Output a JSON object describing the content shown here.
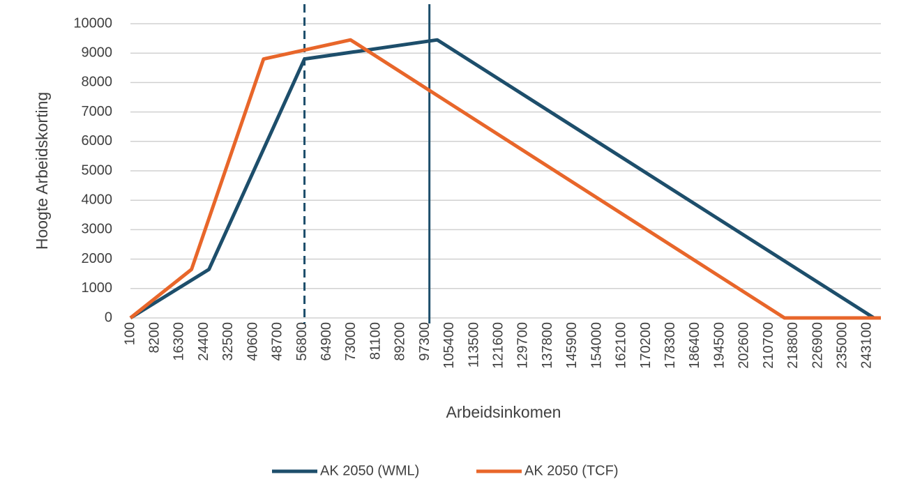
{
  "chart_data": {
    "type": "line",
    "x_label": "Arbeidsinkomen",
    "y_label": "Hoogte Arbeidskorting",
    "series": [
      {
        "name": "AK 2050 (WML)",
        "color": "#1d4e6b",
        "x": [
          100,
          26000,
          57500,
          101300,
          245300,
          247600
        ],
        "values": [
          0,
          1650,
          8800,
          9450,
          0,
          0
        ]
      },
      {
        "name": "AK 2050 (TCF)",
        "color": "#e8662a",
        "x": [
          100,
          20250,
          44000,
          72700,
          215800,
          247600
        ],
        "values": [
          0,
          1650,
          8800,
          9450,
          0,
          0
        ]
      }
    ],
    "reference_lines": [
      {
        "x": 57500,
        "style": "dashed",
        "color": "#1d4e6b"
      },
      {
        "x": 98700,
        "style": "solid",
        "color": "#1d4e6b"
      }
    ],
    "xlim": [
      100,
      247600
    ],
    "xticks": [
      100,
      8200,
      16300,
      24400,
      32500,
      40600,
      48700,
      56800,
      64900,
      73000,
      81100,
      89200,
      97300,
      105400,
      113500,
      121600,
      129700,
      137800,
      145900,
      154000,
      162100,
      170200,
      178300,
      186400,
      194500,
      202600,
      210700,
      218800,
      226900,
      235000,
      243100
    ],
    "ylim": [
      0,
      10000
    ],
    "yticks": [
      0,
      1000,
      2000,
      3000,
      4000,
      5000,
      6000,
      7000,
      8000,
      9000,
      10000
    ],
    "grid": true,
    "legend": "bottom"
  }
}
